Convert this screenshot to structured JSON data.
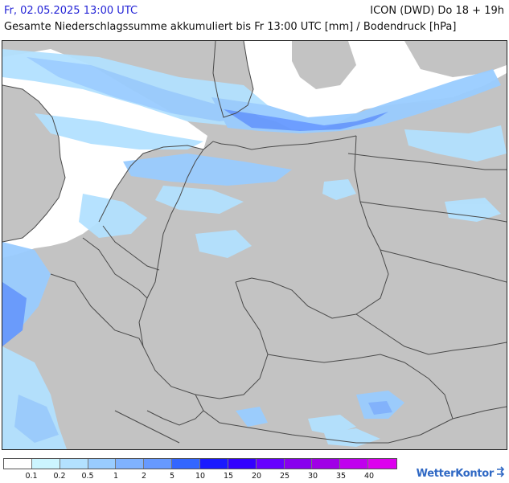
{
  "header": {
    "valid_time": "Fr, 02.05.2025 13:00 UTC",
    "model_run": "ICON (DWD) Do 18 + 19h",
    "subtitle": "Gesamte Niederschlagssumme akkumuliert bis Fr 13:00 UTC [mm] / Bodendruck [hPa]"
  },
  "colors": {
    "land": "#c3c3c3",
    "sea": "#ffffff",
    "border": "#4a4a4a",
    "valid_time_text": "#2323d6",
    "logo_text": "#2f68c4"
  },
  "legend": {
    "colors": [
      "#ffffff",
      "#ccf5ff",
      "#b3e1ff",
      "#99ccff",
      "#7fb2ff",
      "#6699ff",
      "#3366ff",
      "#1a1aff",
      "#3300ff",
      "#6600ff",
      "#8800ee",
      "#a000e6",
      "#c000ee",
      "#dd00ee"
    ],
    "labels": [
      "0.1",
      "0.2",
      "0.5",
      "1",
      "2",
      "5",
      "10",
      "15",
      "20",
      "25",
      "30",
      "35",
      "40"
    ]
  },
  "logo": {
    "text": "WetterKontor",
    "icon": "wind-arrows-icon"
  }
}
